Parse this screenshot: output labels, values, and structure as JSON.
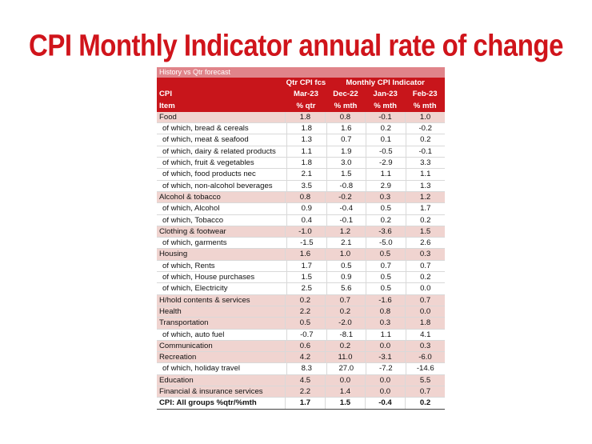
{
  "title": "CPI Monthly Indicator annual rate of change",
  "table": {
    "top_label": "History vs Qtr forecast",
    "header1": {
      "c0": "",
      "c1": "Qtr CPI fcs",
      "group": "Monthly CPI Indicator"
    },
    "header2": [
      "CPI",
      "Mar-23",
      "Dec-22",
      "Jan-23",
      "Feb-23"
    ],
    "header3": [
      "Item",
      "% qtr",
      "% mth",
      "% mth",
      "% mth"
    ],
    "rows": [
      {
        "label": "Food",
        "v": [
          "1.8",
          "0.8",
          "-0.1",
          "1.0"
        ]
      },
      {
        "label": "of which, bread & cereals",
        "v": [
          "1.8",
          "1.6",
          "0.2",
          "-0.2"
        ]
      },
      {
        "label": "of which, meat & seafood",
        "v": [
          "1.3",
          "0.7",
          "0.1",
          "0.2"
        ]
      },
      {
        "label": "of which, dairy & related products",
        "v": [
          "1.1",
          "1.9",
          "-0.5",
          "-0.1"
        ]
      },
      {
        "label": "of which, fruit & vegetables",
        "v": [
          "1.8",
          "3.0",
          "-2.9",
          "3.3"
        ]
      },
      {
        "label": "of which, food products nec",
        "v": [
          "2.1",
          "1.5",
          "1.1",
          "1.1"
        ]
      },
      {
        "label": "of which, non-alcohol beverages",
        "v": [
          "3.5",
          "-0.8",
          "2.9",
          "1.3"
        ]
      },
      {
        "label": "Alcohol & tobacco",
        "v": [
          "0.8",
          "-0.2",
          "0.3",
          "1.2"
        ]
      },
      {
        "label": "of which, Alcohol",
        "v": [
          "0.9",
          "-0.4",
          "0.5",
          "1.7"
        ]
      },
      {
        "label": "of which, Tobacco",
        "v": [
          "0.4",
          "-0.1",
          "0.2",
          "0.2"
        ]
      },
      {
        "label": "Clothing & footwear",
        "v": [
          "-1.0",
          "1.2",
          "-3.6",
          "1.5"
        ]
      },
      {
        "label": "of which, garments",
        "v": [
          "-1.5",
          "2.1",
          "-5.0",
          "2.6"
        ]
      },
      {
        "label": "Housing",
        "v": [
          "1.6",
          "1.0",
          "0.5",
          "0.3"
        ]
      },
      {
        "label": "of which, Rents",
        "v": [
          "1.7",
          "0.5",
          "0.7",
          "0.7"
        ]
      },
      {
        "label": "of which, House purchases",
        "v": [
          "1.5",
          "0.9",
          "0.5",
          "0.2"
        ]
      },
      {
        "label": "of which, Electricity",
        "v": [
          "2.5",
          "5.6",
          "0.5",
          "0.0"
        ]
      },
      {
        "label": "H/hold contents & services",
        "v": [
          "0.2",
          "0.7",
          "-1.6",
          "0.7"
        ]
      },
      {
        "label": "Health",
        "v": [
          "2.2",
          "0.2",
          "0.8",
          "0.0"
        ]
      },
      {
        "label": "Transportation",
        "v": [
          "0.5",
          "-2.0",
          "0.3",
          "1.8"
        ]
      },
      {
        "label": "of which, auto fuel",
        "v": [
          "-0.7",
          "-8.1",
          "1.1",
          "4.1"
        ]
      },
      {
        "label": "Communication",
        "v": [
          "0.6",
          "0.2",
          "0.0",
          "0.3"
        ]
      },
      {
        "label": "Recreation",
        "v": [
          "4.2",
          "11.0",
          "-3.1",
          "-6.0"
        ]
      },
      {
        "label": "of which, holiday travel",
        "v": [
          "8.3",
          "27.0",
          "-7.2",
          "-14.6"
        ]
      },
      {
        "label": "Education",
        "v": [
          "4.5",
          "0.0",
          "0.0",
          "5.5"
        ]
      },
      {
        "label": "Financial & insurance services",
        "v": [
          "2.2",
          "1.4",
          "0.0",
          "0.7"
        ]
      }
    ],
    "total": {
      "label": "CPI: All groups %qtr/%mth",
      "v": [
        "1.7",
        "1.5",
        "-0.4",
        "0.2"
      ]
    }
  }
}
